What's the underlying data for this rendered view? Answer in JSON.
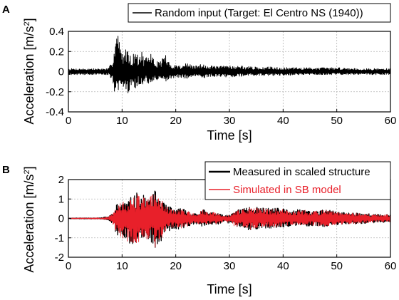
{
  "panel_a_letter": "A",
  "panel_b_letter": "B",
  "chart_data": [
    {
      "type": "line",
      "panel": "A",
      "title": "",
      "xlabel": "Time [s]",
      "ylabel_main": "Acceleration [m/s",
      "ylabel_sup": "2",
      "ylabel_close": "]",
      "xlim": [
        0,
        60
      ],
      "ylim": [
        -0.4,
        0.4
      ],
      "xticks": [
        "0",
        "10",
        "20",
        "30",
        "40",
        "50",
        "60"
      ],
      "yticks": [
        "-0.4",
        "-0.2",
        "0",
        "0.2",
        "0.4"
      ],
      "grid": true,
      "legend_position": "top-right",
      "series": [
        {
          "name": "Random input (Target: El Centro NS (1940))",
          "color": "#000000",
          "envelope": {
            "t": [
              0,
              7.5,
              8.2,
              8.8,
              9.2,
              9.6,
              10.0,
              10.5,
              11.0,
              11.6,
              12.0,
              12.5,
              13.0,
              13.6,
              14.2,
              15.0,
              15.5,
              16.0,
              17.0,
              17.5,
              18.0,
              18.5,
              19.0,
              20.0,
              21.0,
              22.0,
              23.0,
              24.0,
              25.0,
              25.5,
              26.0,
              27.0,
              28.0,
              29.0,
              30.0,
              31.0,
              32.0,
              33.0,
              34.0,
              36.0,
              38.0,
              40.0,
              45.0,
              50.0,
              55.0,
              60.0
            ],
            "max": [
              0.03,
              0.03,
              0.12,
              0.38,
              0.44,
              0.25,
              0.22,
              0.18,
              0.3,
              0.14,
              0.16,
              0.25,
              0.13,
              0.22,
              0.12,
              0.17,
              0.2,
              0.1,
              0.1,
              0.14,
              0.19,
              0.11,
              0.07,
              0.07,
              0.06,
              0.09,
              0.06,
              0.06,
              0.08,
              0.09,
              0.05,
              0.06,
              0.05,
              0.06,
              0.07,
              0.05,
              0.06,
              0.05,
              0.05,
              0.04,
              0.05,
              0.04,
              0.04,
              0.04,
              0.03,
              0.03
            ],
            "min": [
              -0.03,
              -0.03,
              -0.1,
              -0.25,
              -0.22,
              -0.2,
              -0.18,
              -0.16,
              -0.24,
              -0.14,
              -0.12,
              -0.2,
              -0.12,
              -0.16,
              -0.1,
              -0.13,
              -0.12,
              -0.09,
              -0.09,
              -0.1,
              -0.11,
              -0.09,
              -0.07,
              -0.06,
              -0.06,
              -0.07,
              -0.06,
              -0.05,
              -0.07,
              -0.07,
              -0.05,
              -0.05,
              -0.05,
              -0.05,
              -0.06,
              -0.05,
              -0.05,
              -0.04,
              -0.04,
              -0.04,
              -0.04,
              -0.04,
              -0.03,
              -0.03,
              -0.03,
              -0.03
            ]
          }
        }
      ]
    },
    {
      "type": "line",
      "panel": "B",
      "title": "",
      "xlabel": "Time [s]",
      "ylabel_main": "Acceleration [m/s",
      "ylabel_sup": "2",
      "ylabel_close": "]",
      "xlim": [
        0,
        60
      ],
      "ylim": [
        -2,
        2
      ],
      "xticks": [
        "0",
        "10",
        "20",
        "30",
        "40",
        "50",
        "60"
      ],
      "yticks": [
        "-2",
        "-1",
        "0",
        "1",
        "2"
      ],
      "grid": true,
      "legend_position": "top-right",
      "series": [
        {
          "name": "Measured in scaled structure",
          "color": "#000000",
          "envelope": {
            "t": [
              0,
              6.0,
              7.5,
              8.5,
              9.0,
              10.0,
              11.0,
              12.0,
              13.0,
              14.0,
              15.0,
              16.0,
              16.5,
              17.0,
              18.0,
              19.0,
              20.0,
              21.0,
              22.0,
              23.0,
              24.0,
              25.0,
              26.0,
              27.0,
              28.0,
              29.0,
              30.0,
              31.0,
              32.0,
              33.0,
              34.0,
              36.0,
              38.0,
              40.0,
              42.0,
              44.0,
              46.0,
              48.0,
              50.0,
              52.0,
              54.0,
              56.0,
              58.0,
              60.0
            ],
            "max": [
              0.02,
              0.03,
              0.1,
              0.35,
              0.75,
              0.9,
              0.9,
              1.2,
              1.35,
              1.2,
              1.1,
              1.4,
              1.45,
              1.2,
              0.7,
              0.6,
              0.45,
              0.55,
              0.45,
              0.3,
              0.25,
              0.5,
              0.3,
              0.35,
              0.25,
              0.15,
              0.2,
              0.45,
              0.45,
              0.65,
              0.6,
              0.55,
              0.55,
              0.5,
              0.45,
              0.45,
              0.4,
              0.45,
              0.35,
              0.3,
              0.3,
              0.25,
              0.2,
              0.2
            ],
            "min": [
              -0.02,
              -0.03,
              -0.1,
              -0.4,
              -1.0,
              -1.05,
              -1.3,
              -1.3,
              -1.5,
              -1.15,
              -1.1,
              -1.45,
              -1.75,
              -1.3,
              -0.8,
              -0.6,
              -0.55,
              -0.55,
              -0.5,
              -0.3,
              -0.3,
              -0.45,
              -0.3,
              -0.35,
              -0.3,
              -0.2,
              -0.25,
              -0.45,
              -0.45,
              -0.6,
              -0.6,
              -0.5,
              -0.5,
              -0.45,
              -0.4,
              -0.4,
              -0.4,
              -0.45,
              -0.35,
              -0.3,
              -0.3,
              -0.25,
              -0.2,
              -0.2
            ]
          }
        },
        {
          "name": "Simulated in SB model",
          "color": "#e8202a",
          "envelope": {
            "t": [
              0,
              6.0,
              7.5,
              8.5,
              9.0,
              10.0,
              11.0,
              12.0,
              13.0,
              14.0,
              15.0,
              16.0,
              16.5,
              17.0,
              18.0,
              19.0,
              20.0,
              21.0,
              22.0,
              23.0,
              24.0,
              25.0,
              26.0,
              27.0,
              28.0,
              29.0,
              30.0,
              31.0,
              32.0,
              33.0,
              34.0,
              36.0,
              38.0,
              40.0,
              42.0,
              44.0,
              46.0,
              48.0,
              50.0,
              52.0,
              54.0,
              56.0,
              58.0,
              60.0
            ],
            "max": [
              0.02,
              0.03,
              0.09,
              0.32,
              0.7,
              0.85,
              0.85,
              1.15,
              1.3,
              1.15,
              1.05,
              1.35,
              1.4,
              1.15,
              0.65,
              0.55,
              0.4,
              0.5,
              0.42,
              0.28,
              0.23,
              0.45,
              0.28,
              0.32,
              0.23,
              0.14,
              0.18,
              0.42,
              0.42,
              0.62,
              0.57,
              0.52,
              0.52,
              0.48,
              0.43,
              0.43,
              0.38,
              0.43,
              0.33,
              0.28,
              0.28,
              0.23,
              0.19,
              0.19
            ],
            "min": [
              -0.02,
              -0.03,
              -0.09,
              -0.37,
              -0.95,
              -1.0,
              -1.25,
              -1.25,
              -1.45,
              -1.1,
              -1.05,
              -1.4,
              -1.7,
              -1.25,
              -0.75,
              -0.55,
              -0.5,
              -0.5,
              -0.47,
              -0.28,
              -0.28,
              -0.42,
              -0.28,
              -0.33,
              -0.28,
              -0.18,
              -0.23,
              -0.42,
              -0.42,
              -0.57,
              -0.57,
              -0.47,
              -0.47,
              -0.42,
              -0.38,
              -0.38,
              -0.38,
              -0.43,
              -0.33,
              -0.28,
              -0.28,
              -0.23,
              -0.19,
              -0.19
            ]
          }
        }
      ]
    }
  ]
}
